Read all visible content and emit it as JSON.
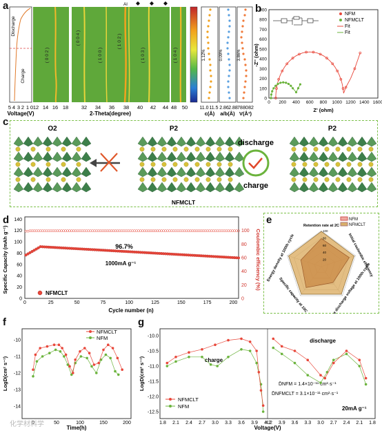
{
  "labels": {
    "a": "a",
    "b": "b",
    "c": "c",
    "d": "d",
    "e": "e",
    "f": "f",
    "g": "g"
  },
  "panel_a": {
    "voltage_axis_title": "Voltage(V)",
    "voltage_ticks": [
      "5",
      "4",
      "3",
      "2",
      "1",
      "0"
    ],
    "discharge_label": "Discharge",
    "charge_label": "Charge",
    "theta_axis_title": "2-Theta(degree)",
    "theta_ticks": [
      "12",
      "14",
      "16",
      "18",
      "32",
      "34",
      "36",
      "38",
      "40",
      "42",
      "44",
      "48",
      "50"
    ],
    "peaks": [
      "( 0 0 2 )",
      "( 0 0 4 )",
      "( 1 0 0 )",
      "( 1 0 2 )",
      "( 1 0 3 )",
      "( 1 0 4 )"
    ],
    "al_label": "Al",
    "c_axis_title": "c(Å)",
    "c_ticks": [
      "11.0",
      "11.5"
    ],
    "c_change": "1.12%",
    "a_axis_title": "a/b(Å)",
    "a_ticks": [
      "2.86",
      "2.88"
    ],
    "a_change": "0.09%",
    "v_axis_title": "V(Å³)",
    "v_ticks": [
      "78",
      "80",
      "82"
    ],
    "v_change": "3.86%"
  },
  "panel_b": {
    "ylabel": "-Z'' (ohm)",
    "xlabel": "Z' (ohm)",
    "yticks": [
      "0",
      "100",
      "200",
      "300",
      "400",
      "500",
      "600",
      "700",
      "800",
      "900"
    ],
    "xticks": [
      "0",
      "200",
      "400",
      "600",
      "800",
      "1000",
      "1200",
      "1400",
      "1600"
    ],
    "legend": [
      "NFM",
      "NFMCLT",
      "Fit",
      "Fit"
    ],
    "colors": {
      "nfm": "#e8473a",
      "nfmclt": "#6bb33c"
    }
  },
  "panel_c": {
    "left_title": "O2",
    "mid_title": "P2",
    "right_title": "P2",
    "discharge": "discharge",
    "charge": "charge",
    "caption": "NFMCLT"
  },
  "panel_d": {
    "ylabel_left": "Specific Capacity (mAh g⁻¹)",
    "ylabel_right": "Coulombic efficiency (%)",
    "xlabel": "Cycle number (n)",
    "yticks_left": [
      "0",
      "20",
      "40",
      "60",
      "80",
      "100",
      "120",
      "140"
    ],
    "yticks_right": [
      "0",
      "20",
      "40",
      "60",
      "80",
      "100"
    ],
    "xticks": [
      "0",
      "25",
      "50",
      "75",
      "100",
      "125",
      "150",
      "175",
      "200"
    ],
    "retention": "96.7%",
    "current": "1000mA g⁻¹",
    "legend": "NFMCLT"
  },
  "panel_e": {
    "axes": [
      "Retention rate at 2C",
      "Initial coulombic efficiency",
      "Average discharge voltage at 100th cycle",
      "Specific capacity at 10C",
      "Energy density at 100th cycle"
    ],
    "legend": [
      "NFM",
      "NFMCLT"
    ],
    "ticks": [
      "100",
      "80",
      "60",
      "40",
      "20"
    ]
  },
  "panel_f": {
    "ylabel": "LogD(cm² s⁻¹)",
    "xlabel": "Time(h)",
    "yticks": [
      "-10",
      "-11",
      "-12",
      "-13",
      "-14"
    ],
    "xticks": [
      "0",
      "50",
      "100",
      "150",
      "200"
    ],
    "legend": [
      "NFMCLT",
      "NFM"
    ]
  },
  "panel_g": {
    "ylabel": "LogD(cm² s⁻¹)",
    "xlabel": "Voltage(V)",
    "yticks": [
      "-10.0",
      "-10.5",
      "-11.0",
      "-11.5",
      "-12.0",
      "-12.5"
    ],
    "xticks": [
      "1.8",
      "2.1",
      "2.4",
      "2.7",
      "3.0",
      "3.3",
      "3.6",
      "3.9",
      "4.2",
      "4.2",
      "3.9",
      "3.6",
      "3.3",
      "3.0",
      "2.7",
      "2.4",
      "2.1",
      "1.8"
    ],
    "charge": "charge",
    "discharge": "discharge",
    "eq1": "D̄NFM = 1.4×10⁻¹¹ cm²·s⁻¹",
    "eq2": "D̄NFMCLT = 3.1×10⁻¹¹ cm²·s⁻¹",
    "current": "20mA g⁻¹",
    "legend": [
      "NFMCLT",
      "NFM"
    ]
  },
  "watermark": "化学材料学"
}
